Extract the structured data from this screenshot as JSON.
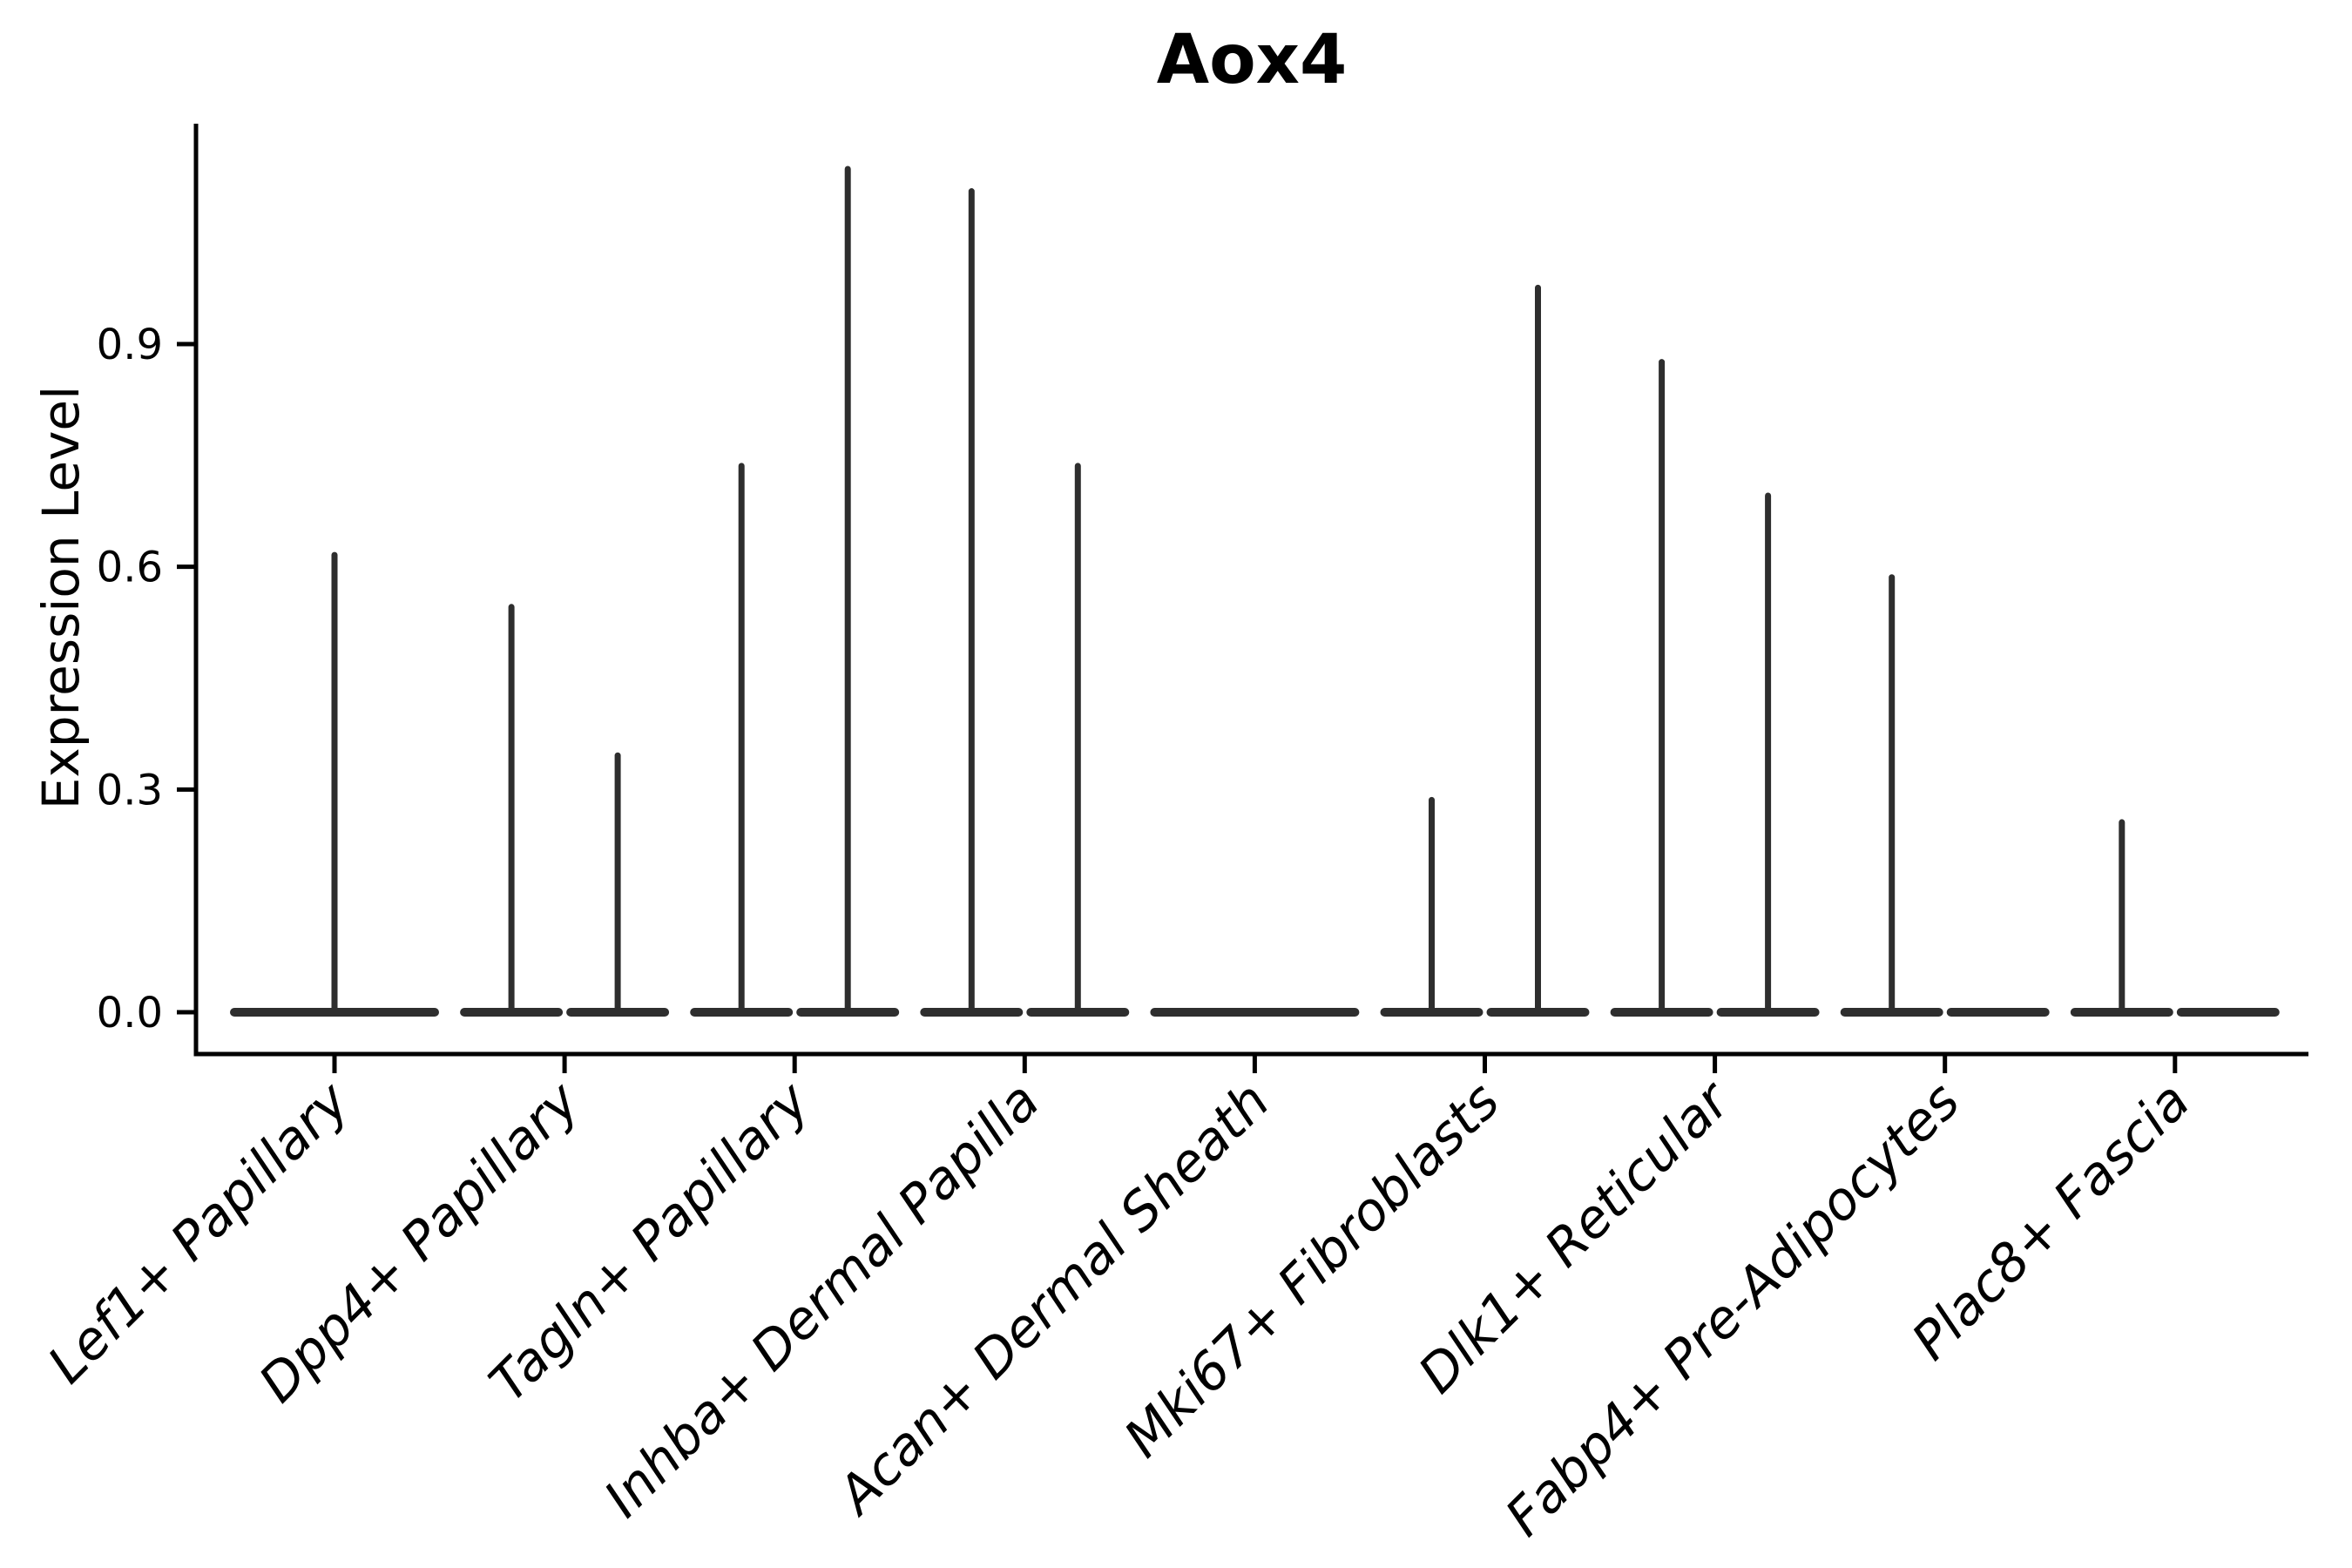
{
  "chart_data": {
    "type": "violin",
    "title": "Aox4",
    "xlabel": "",
    "ylabel": "Expression Level",
    "yticks": [
      "0.0",
      "0.3",
      "0.6",
      "0.9"
    ],
    "ytick_values": [
      0.0,
      0.3,
      0.6,
      0.9
    ],
    "ylim": [
      -0.06,
      1.2
    ],
    "grid": false,
    "legend": false,
    "categories": [
      "Lef1+ Papillary",
      "Dpp4+ Papillary",
      "Tagln+ Papillary",
      "Inhba+ Dermal Papilla",
      "Acan+ Dermal Sheath",
      "Mki67+ Fibroblasts",
      "Dlk1+ Reticular",
      "Fabp4+ Pre-Adipocytes",
      "Plac8+ Fascia"
    ],
    "violins": [
      {
        "category": "Lef1+ Papillary",
        "items": [
          {
            "offset": 0,
            "width": 1.0,
            "peak": 0.62
          }
        ]
      },
      {
        "category": "Dpp4+ Papillary",
        "items": [
          {
            "offset": -0.25,
            "width": 0.5,
            "peak": 0.55
          },
          {
            "offset": 0.25,
            "width": 0.5,
            "peak": 0.35
          }
        ]
      },
      {
        "category": "Tagln+ Papillary",
        "items": [
          {
            "offset": -0.25,
            "width": 0.5,
            "peak": 0.74
          },
          {
            "offset": 0.25,
            "width": 0.5,
            "peak": 1.14
          }
        ]
      },
      {
        "category": "Inhba+ Dermal Papilla",
        "items": [
          {
            "offset": -0.25,
            "width": 0.5,
            "peak": 1.11
          },
          {
            "offset": 0.25,
            "width": 0.5,
            "peak": 0.74
          }
        ]
      },
      {
        "category": "Acan+ Dermal Sheath",
        "items": [
          {
            "offset": 0,
            "width": 1.0,
            "peak": 0
          }
        ]
      },
      {
        "category": "Mki67+ Fibroblasts",
        "items": [
          {
            "offset": -0.25,
            "width": 0.5,
            "peak": 0.29
          },
          {
            "offset": 0.25,
            "width": 0.5,
            "peak": 0.98
          }
        ]
      },
      {
        "category": "Dlk1+ Reticular",
        "items": [
          {
            "offset": -0.25,
            "width": 0.5,
            "peak": 0.88
          },
          {
            "offset": 0.25,
            "width": 0.5,
            "peak": 0.7
          }
        ]
      },
      {
        "category": "Fabp4+ Pre-Adipocytes",
        "items": [
          {
            "offset": -0.25,
            "width": 0.5,
            "peak": 0.59
          },
          {
            "offset": 0.25,
            "width": 0.5,
            "peak": 0
          }
        ]
      },
      {
        "category": "Plac8+ Fascia",
        "items": [
          {
            "offset": -0.25,
            "width": 0.5,
            "peak": 0.26
          },
          {
            "offset": 0.25,
            "width": 0.5,
            "peak": 0
          }
        ]
      }
    ],
    "colors": {
      "axis": "#000000",
      "violin": "#2e2e2e",
      "text": "#000000",
      "background": "#ffffff"
    }
  }
}
